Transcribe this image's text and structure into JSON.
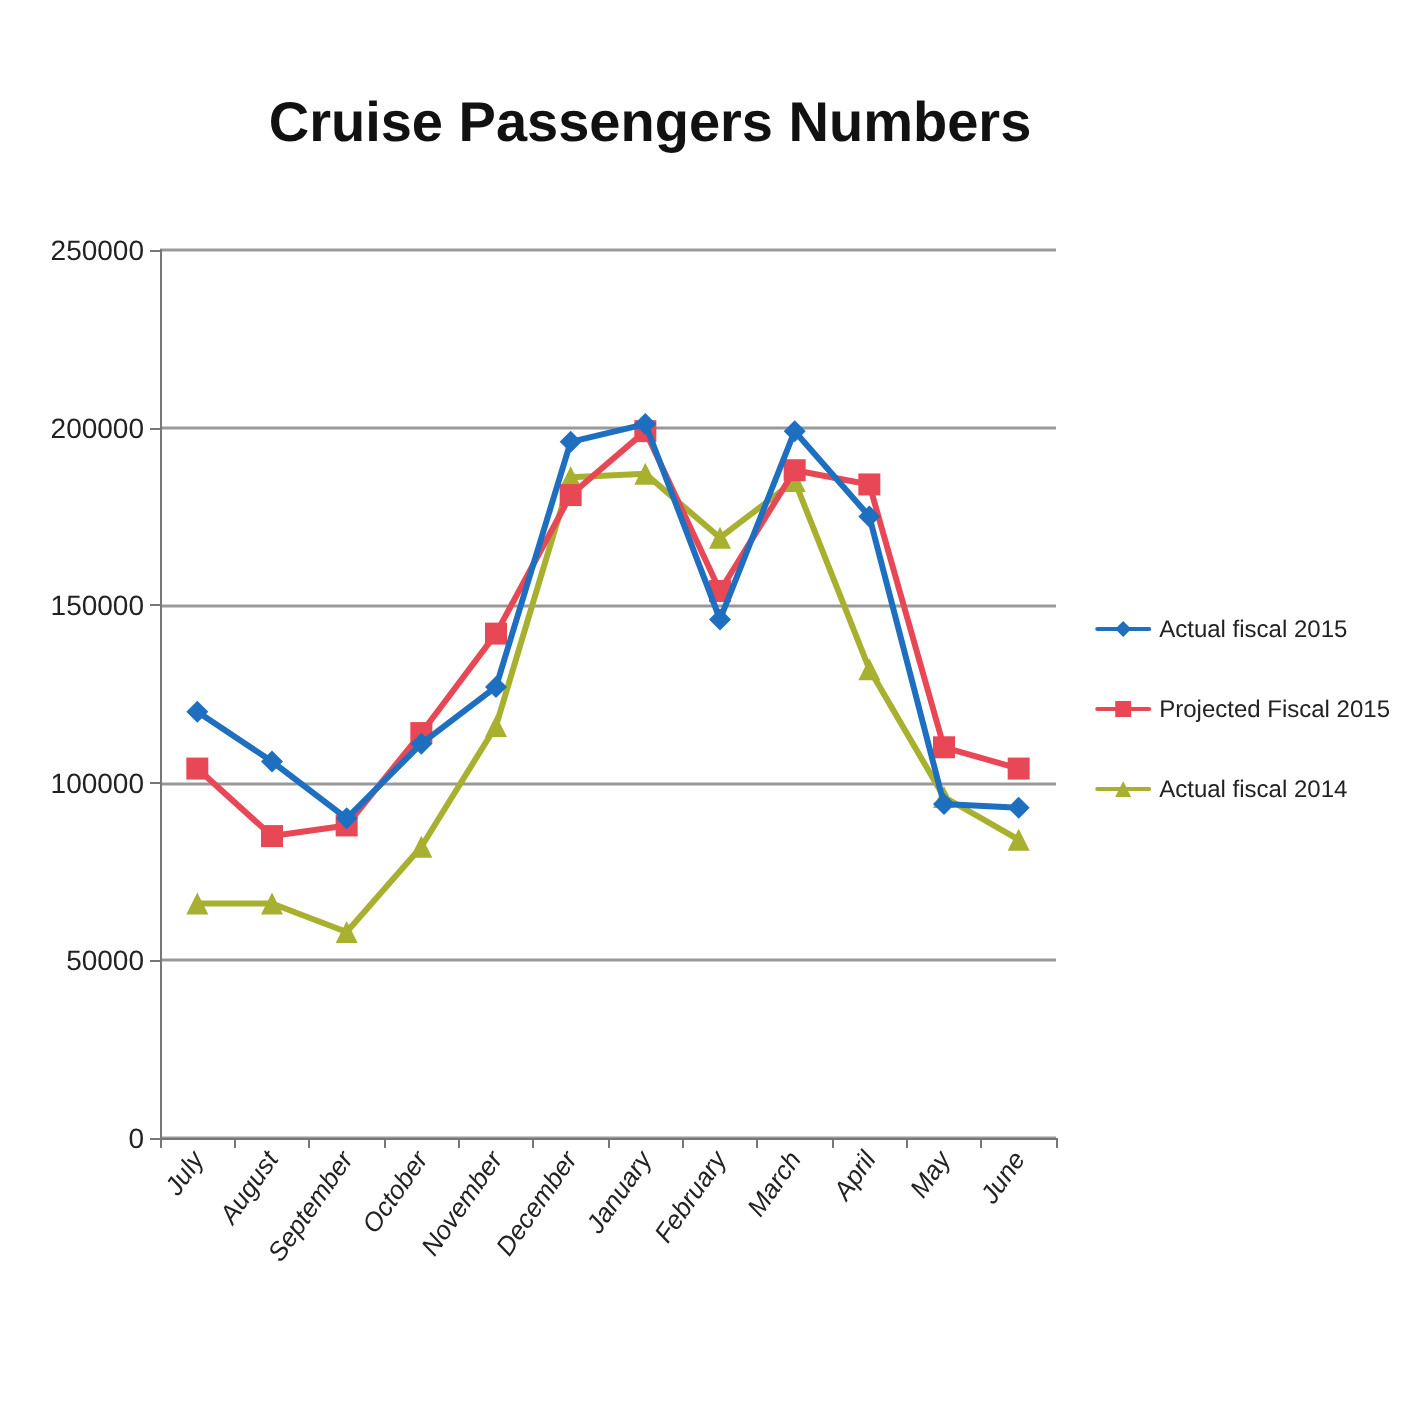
{
  "chart_data": {
    "type": "line",
    "title": "Cruise Passengers Numbers",
    "categories": [
      "July",
      "August",
      "September",
      "October",
      "November",
      "December",
      "January",
      "February",
      "March",
      "April",
      "May",
      "June"
    ],
    "series": [
      {
        "name": "Actual fiscal 2015",
        "color": "#1f6fc0",
        "marker": "diamond",
        "values": [
          120000,
          106000,
          90000,
          111000,
          127000,
          196000,
          201000,
          146000,
          199000,
          175000,
          94000,
          93000
        ]
      },
      {
        "name": "Projected Fiscal 2015",
        "color": "#e84855",
        "marker": "square",
        "values": [
          104000,
          85000,
          88000,
          114000,
          142000,
          181000,
          199000,
          154000,
          188000,
          184000,
          110000,
          104000
        ]
      },
      {
        "name": "Actual fiscal 2014",
        "color": "#a8b030",
        "marker": "triangle",
        "values": [
          66000,
          66000,
          58000,
          82000,
          116000,
          186000,
          187000,
          169000,
          185000,
          132000,
          96000,
          84000
        ]
      }
    ],
    "ylim": [
      0,
      250000
    ],
    "yticks": [
      0,
      50000,
      100000,
      150000,
      200000,
      250000
    ],
    "grid": "y",
    "legend": "right"
  }
}
